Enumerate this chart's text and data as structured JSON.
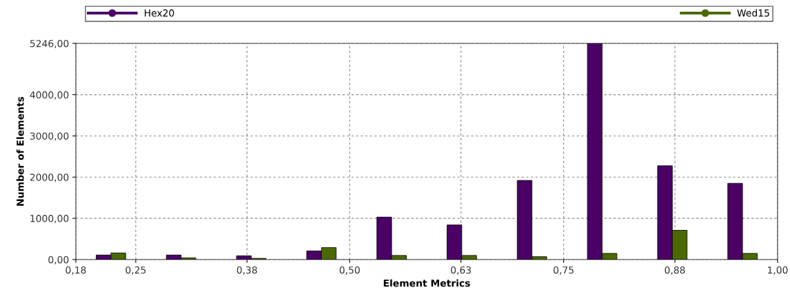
{
  "chart_data": {
    "type": "bar",
    "xlabel": "Element Metrics",
    "ylabel": "Number of Elements",
    "x": [
      0.221,
      0.303,
      0.385,
      0.467,
      0.549,
      0.631,
      0.713,
      0.795,
      0.877,
      0.959
    ],
    "series": [
      {
        "name": "Hex20",
        "color": "#4b0066",
        "values": [
          110,
          110,
          90,
          210,
          1030,
          840,
          1920,
          5246,
          2275,
          1850
        ]
      },
      {
        "name": "Wed15",
        "color": "#4a6a00",
        "values": [
          160,
          40,
          30,
          290,
          100,
          100,
          70,
          150,
          710,
          150
        ]
      }
    ],
    "xlim": [
      0.18,
      1.0
    ],
    "xticks": [
      {
        "value": 0.18,
        "label": "0,18"
      },
      {
        "value": 0.25,
        "label": "0,25"
      },
      {
        "value": 0.38,
        "label": "0,38"
      },
      {
        "value": 0.5,
        "label": "0,50"
      },
      {
        "value": 0.63,
        "label": "0,63"
      },
      {
        "value": 0.75,
        "label": "0,75"
      },
      {
        "value": 0.88,
        "label": "0,88"
      },
      {
        "value": 1.0,
        "label": "1,00"
      }
    ],
    "ylim": [
      0,
      5246
    ],
    "yticks": [
      {
        "value": 0,
        "label": "0,00"
      },
      {
        "value": 1000,
        "label": "1000,00"
      },
      {
        "value": 2000,
        "label": "2000,00"
      },
      {
        "value": 3000,
        "label": "3000,00"
      },
      {
        "value": 4000,
        "label": "4000,00"
      },
      {
        "value": 5246,
        "label": "5246,00"
      }
    ],
    "grid": true,
    "legend": "top"
  }
}
